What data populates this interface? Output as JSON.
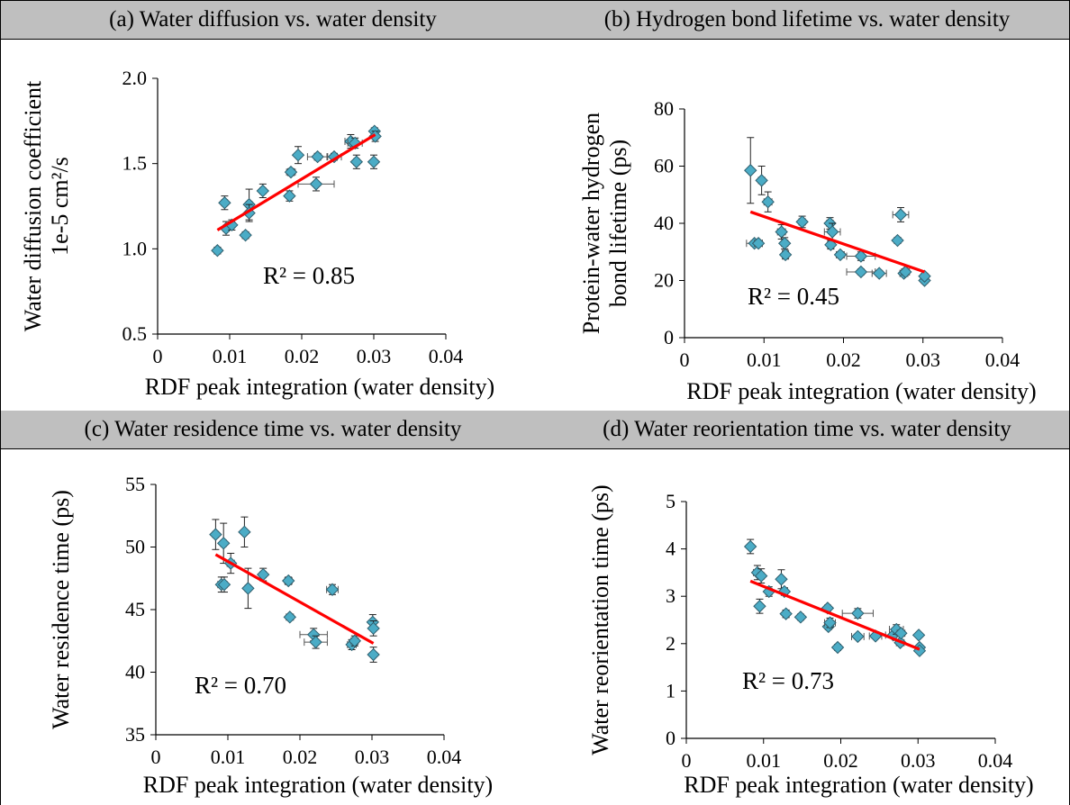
{
  "panels": [
    {
      "title": "(a) Water diffusion vs. water density",
      "r2": "R² = 0.85",
      "ylabel_lines": [
        "Water diffusion coefficient",
        "1e-5 cm²/s"
      ]
    },
    {
      "title": "(b) Hydrogen bond lifetime vs. water density",
      "r2": "R² = 0.45",
      "ylabel_lines": [
        "Protein-water hydrogen",
        "bond lifetime (ps)"
      ]
    },
    {
      "title": "(c) Water residence time vs. water density",
      "r2": "R² = 0.70",
      "ylabel_lines": [
        "Water residence time (ps)"
      ]
    },
    {
      "title": "(d) Water reorientation time vs. water density",
      "r2": "R² = 0.73",
      "ylabel_lines": [
        "Water reorientation time (ps)"
      ]
    }
  ],
  "chart_data": [
    {
      "type": "scatter",
      "title": "(a) Water diffusion vs. water density",
      "xlabel": "RDF peak integration (water density)",
      "ylabel": "Water diffusion coefficient 1e-5 cm²/s",
      "xlim": [
        0,
        0.04
      ],
      "ylim": [
        0.5,
        2.0
      ],
      "xticks": [
        "0",
        "0.01",
        "0.02",
        "0.03",
        "0.04"
      ],
      "yticks": [
        "0.5",
        "1.0",
        "1.5",
        "2.0"
      ],
      "grid": false,
      "marker_color": "#4bacc6",
      "trendline_color": "#ff0000",
      "r_squared": 0.85,
      "trendline": {
        "x": [
          0.0083,
          0.0302
        ],
        "y": [
          1.11,
          1.67
        ]
      },
      "points": [
        {
          "x": 0.0083,
          "y": 0.99,
          "xerr": 0.0002,
          "yerr": 0.02
        },
        {
          "x": 0.0093,
          "y": 1.27,
          "xerr": 0.0004,
          "yerr": 0.04
        },
        {
          "x": 0.0095,
          "y": 1.12,
          "xerr": 0.0004,
          "yerr": 0.04
        },
        {
          "x": 0.0103,
          "y": 1.14,
          "xerr": 0.0004,
          "yerr": 0.03
        },
        {
          "x": 0.0122,
          "y": 1.08,
          "xerr": 0.0003,
          "yerr": 0.02
        },
        {
          "x": 0.0127,
          "y": 1.26,
          "xerr": 0.0004,
          "yerr": 0.09
        },
        {
          "x": 0.0127,
          "y": 1.21,
          "xerr": 0.0003,
          "yerr": 0.05
        },
        {
          "x": 0.0146,
          "y": 1.34,
          "xerr": 0.0004,
          "yerr": 0.04
        },
        {
          "x": 0.0183,
          "y": 1.31,
          "xerr": 0.0003,
          "yerr": 0.03
        },
        {
          "x": 0.0185,
          "y": 1.45,
          "xerr": 0.0006,
          "yerr": 0.02
        },
        {
          "x": 0.0195,
          "y": 1.55,
          "xerr": 0.0003,
          "yerr": 0.05
        },
        {
          "x": 0.022,
          "y": 1.38,
          "xerr": 0.0025,
          "yerr": 0.04
        },
        {
          "x": 0.0222,
          "y": 1.54,
          "xerr": 0.0014,
          "yerr": 0.02
        },
        {
          "x": 0.0245,
          "y": 1.54,
          "xerr": 0.001,
          "yerr": 0.02
        },
        {
          "x": 0.0268,
          "y": 1.63,
          "xerr": 0.0008,
          "yerr": 0.04
        },
        {
          "x": 0.0274,
          "y": 1.62,
          "xerr": 0.001,
          "yerr": 0.03
        },
        {
          "x": 0.0276,
          "y": 1.51,
          "xerr": 0.0004,
          "yerr": 0.04
        },
        {
          "x": 0.03,
          "y": 1.51,
          "xerr": 0.0003,
          "yerr": 0.04
        },
        {
          "x": 0.0301,
          "y": 1.69,
          "xerr": 0.0003,
          "yerr": 0.02
        },
        {
          "x": 0.0302,
          "y": 1.66,
          "xerr": 0.0003,
          "yerr": 0.03
        }
      ]
    },
    {
      "type": "scatter",
      "title": "(b) Hydrogen bond lifetime vs. water density",
      "xlabel": "RDF peak integration (water density)",
      "ylabel": "Protein-water hydrogen bond lifetime (ps)",
      "xlim": [
        0,
        0.04
      ],
      "ylim": [
        0,
        80
      ],
      "xticks": [
        "0",
        "0.01",
        "0.02",
        "0.03",
        "0.04"
      ],
      "yticks": [
        "0",
        "20",
        "40",
        "60",
        "80"
      ],
      "grid": false,
      "marker_color": "#4bacc6",
      "trendline_color": "#ff0000",
      "r_squared": 0.45,
      "trendline": {
        "x": [
          0.0083,
          0.0302
        ],
        "y": [
          44.0,
          23.0
        ]
      },
      "points": [
        {
          "x": 0.0083,
          "y": 58.5,
          "xerr": 0.0003,
          "yerr": 11.5
        },
        {
          "x": 0.0088,
          "y": 33.0,
          "xerr": 0.001,
          "yerr": 1.0
        },
        {
          "x": 0.0093,
          "y": 33.0,
          "xerr": 0.0005,
          "yerr": 1.0
        },
        {
          "x": 0.0097,
          "y": 55.0,
          "xerr": 0.0004,
          "yerr": 5.0
        },
        {
          "x": 0.0105,
          "y": 47.5,
          "xerr": 0.0005,
          "yerr": 3.5
        },
        {
          "x": 0.0122,
          "y": 37.0,
          "xerr": 0.0005,
          "yerr": 2.5
        },
        {
          "x": 0.0126,
          "y": 33.0,
          "xerr": 0.0004,
          "yerr": 2.0
        },
        {
          "x": 0.0127,
          "y": 29.0,
          "xerr": 0.0004,
          "yerr": 1.5
        },
        {
          "x": 0.0148,
          "y": 40.5,
          "xerr": 0.0004,
          "yerr": 2.0
        },
        {
          "x": 0.0183,
          "y": 40.0,
          "xerr": 0.0004,
          "yerr": 2.0
        },
        {
          "x": 0.0184,
          "y": 32.5,
          "xerr": 0.0004,
          "yerr": 1.5
        },
        {
          "x": 0.0186,
          "y": 37.0,
          "xerr": 0.001,
          "yerr": 3.0
        },
        {
          "x": 0.0196,
          "y": 29.0,
          "xerr": 0.0005,
          "yerr": 1.0
        },
        {
          "x": 0.0222,
          "y": 28.5,
          "xerr": 0.0018,
          "yerr": 1.5
        },
        {
          "x": 0.0222,
          "y": 23.0,
          "xerr": 0.0018,
          "yerr": 1.0
        },
        {
          "x": 0.0245,
          "y": 22.5,
          "xerr": 0.0009,
          "yerr": 1.0
        },
        {
          "x": 0.0268,
          "y": 34.0,
          "xerr": 0.0004,
          "yerr": 1.0
        },
        {
          "x": 0.0272,
          "y": 43.0,
          "xerr": 0.001,
          "yerr": 2.5
        },
        {
          "x": 0.0276,
          "y": 22.5,
          "xerr": 0.0005,
          "yerr": 1.0
        },
        {
          "x": 0.0278,
          "y": 23.0,
          "xerr": 0.0005,
          "yerr": 1.0
        },
        {
          "x": 0.0302,
          "y": 20.0,
          "xerr": 0.0003,
          "yerr": 1.0
        },
        {
          "x": 0.0302,
          "y": 21.5,
          "xerr": 0.0003,
          "yerr": 1.0
        }
      ]
    },
    {
      "type": "scatter",
      "title": "(c) Water residence time vs. water density",
      "xlabel": "RDF peak integration (water density)",
      "ylabel": "Water residence time (ps)",
      "xlim": [
        0,
        0.04
      ],
      "ylim": [
        35,
        55
      ],
      "xticks": [
        "0",
        "0.01",
        "0.02",
        "0.03",
        "0.04"
      ],
      "yticks": [
        "35",
        "40",
        "45",
        "50",
        "55"
      ],
      "grid": false,
      "marker_color": "#4bacc6",
      "trendline_color": "#ff0000",
      "r_squared": 0.7,
      "trendline": {
        "x": [
          0.0083,
          0.0302
        ],
        "y": [
          49.4,
          42.3
        ]
      },
      "points": [
        {
          "x": 0.0083,
          "y": 51.0,
          "xerr": 0.0004,
          "yerr": 1.2
        },
        {
          "x": 0.0091,
          "y": 47.0,
          "xerr": 0.0005,
          "yerr": 0.6
        },
        {
          "x": 0.0094,
          "y": 50.3,
          "xerr": 0.0004,
          "yerr": 1.6
        },
        {
          "x": 0.0095,
          "y": 47.0,
          "xerr": 0.0004,
          "yerr": 0.6
        },
        {
          "x": 0.0104,
          "y": 48.7,
          "xerr": 0.0005,
          "yerr": 0.8
        },
        {
          "x": 0.0123,
          "y": 51.2,
          "xerr": 0.0003,
          "yerr": 1.2
        },
        {
          "x": 0.0128,
          "y": 46.7,
          "xerr": 0.0004,
          "yerr": 1.6
        },
        {
          "x": 0.0149,
          "y": 47.8,
          "xerr": 0.0004,
          "yerr": 0.5
        },
        {
          "x": 0.0184,
          "y": 47.3,
          "xerr": 0.0005,
          "yerr": 0.3
        },
        {
          "x": 0.0186,
          "y": 44.4,
          "xerr": 0.0005,
          "yerr": 0.2
        },
        {
          "x": 0.0219,
          "y": 43.0,
          "xerr": 0.0019,
          "yerr": 0.5
        },
        {
          "x": 0.0222,
          "y": 42.4,
          "xerr": 0.0016,
          "yerr": 0.5
        },
        {
          "x": 0.0245,
          "y": 46.6,
          "xerr": 0.0008,
          "yerr": 0.4
        },
        {
          "x": 0.0272,
          "y": 42.2,
          "xerr": 0.0006,
          "yerr": 0.4
        },
        {
          "x": 0.0276,
          "y": 42.5,
          "xerr": 0.0005,
          "yerr": 0.4
        },
        {
          "x": 0.0301,
          "y": 44.0,
          "xerr": 0.0003,
          "yerr": 0.6
        },
        {
          "x": 0.0302,
          "y": 43.5,
          "xerr": 0.0003,
          "yerr": 0.6
        },
        {
          "x": 0.0302,
          "y": 41.4,
          "xerr": 0.0003,
          "yerr": 0.6
        }
      ]
    },
    {
      "type": "scatter",
      "title": "(d) Water reorientation time vs. water density",
      "xlabel": "RDF peak integration (water density)",
      "ylabel": "Water reorientation time (ps)",
      "xlim": [
        0,
        0.04
      ],
      "ylim": [
        0,
        5
      ],
      "xticks": [
        "0",
        "0.01",
        "0.02",
        "0.03",
        "0.04"
      ],
      "yticks": [
        "0",
        "1",
        "2",
        "3",
        "4",
        "5"
      ],
      "grid": false,
      "marker_color": "#4bacc6",
      "trendline_color": "#ff0000",
      "r_squared": 0.73,
      "trendline": {
        "x": [
          0.0083,
          0.0302
        ],
        "y": [
          3.32,
          1.88
        ]
      },
      "points": [
        {
          "x": 0.0083,
          "y": 4.05,
          "xerr": 0.0003,
          "yerr": 0.15
        },
        {
          "x": 0.0092,
          "y": 3.5,
          "xerr": 0.0005,
          "yerr": 0.15
        },
        {
          "x": 0.0095,
          "y": 2.79,
          "xerr": 0.0003,
          "yerr": 0.15
        },
        {
          "x": 0.0097,
          "y": 3.43,
          "xerr": 0.0004,
          "yerr": 0.15
        },
        {
          "x": 0.0107,
          "y": 3.1,
          "xerr": 0.0004,
          "yerr": 0.1
        },
        {
          "x": 0.0123,
          "y": 3.36,
          "xerr": 0.0003,
          "yerr": 0.2
        },
        {
          "x": 0.0127,
          "y": 3.1,
          "xerr": 0.0004,
          "yerr": 0.08
        },
        {
          "x": 0.0129,
          "y": 2.63,
          "xerr": 0.0004,
          "yerr": 0.08
        },
        {
          "x": 0.0148,
          "y": 2.56,
          "xerr": 0.0004,
          "yerr": 0.05
        },
        {
          "x": 0.0183,
          "y": 2.75,
          "xerr": 0.0004,
          "yerr": 0.05
        },
        {
          "x": 0.0184,
          "y": 2.36,
          "xerr": 0.0004,
          "yerr": 0.05
        },
        {
          "x": 0.0186,
          "y": 2.44,
          "xerr": 0.0007,
          "yerr": 0.1
        },
        {
          "x": 0.0196,
          "y": 1.92,
          "xerr": 0.0004,
          "yerr": 0.05
        },
        {
          "x": 0.0222,
          "y": 2.15,
          "xerr": 0.0008,
          "yerr": 0.05
        },
        {
          "x": 0.0222,
          "y": 2.64,
          "xerr": 0.002,
          "yerr": 0.1
        },
        {
          "x": 0.0245,
          "y": 2.16,
          "xerr": 0.0008,
          "yerr": 0.05
        },
        {
          "x": 0.0268,
          "y": 2.18,
          "xerr": 0.001,
          "yerr": 0.05
        },
        {
          "x": 0.0272,
          "y": 2.3,
          "xerr": 0.0009,
          "yerr": 0.1
        },
        {
          "x": 0.0277,
          "y": 2.02,
          "xerr": 0.0005,
          "yerr": 0.05
        },
        {
          "x": 0.0278,
          "y": 2.22,
          "xerr": 0.0005,
          "yerr": 0.05
        },
        {
          "x": 0.0301,
          "y": 2.18,
          "xerr": 0.0003,
          "yerr": 0.05
        },
        {
          "x": 0.0302,
          "y": 1.92,
          "xerr": 0.0003,
          "yerr": 0.05
        },
        {
          "x": 0.0302,
          "y": 1.85,
          "xerr": 0.0003,
          "yerr": 0.05
        }
      ]
    }
  ]
}
